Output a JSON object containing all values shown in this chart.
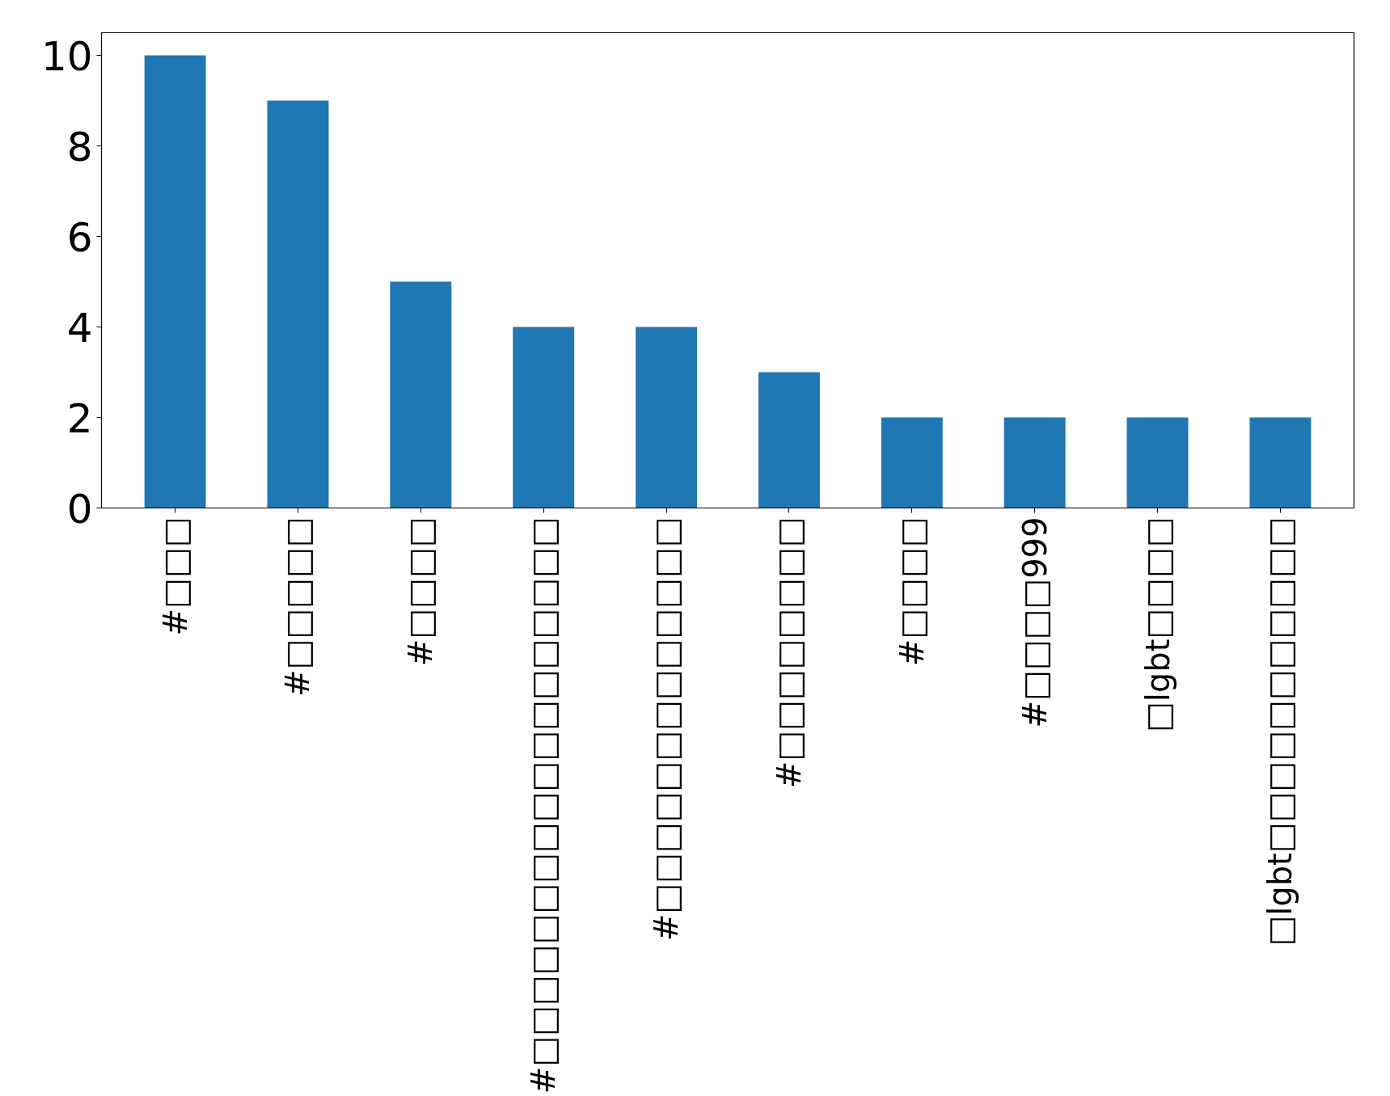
{
  "chart_data": {
    "type": "bar",
    "categories": [
      "#□□□",
      "#□□□□□",
      "#□□□□",
      "#□□□□□□□□□□□□□□□□□□",
      "#□□□□□□□□□□□□□",
      "#□□□□□□□□",
      "#□□□□",
      "#□□□□999",
      "□lgbt□□□□",
      "□lgbt□□□□□□□□□□□"
    ],
    "values": [
      10,
      9,
      5,
      4,
      4,
      3,
      2,
      2,
      2,
      2
    ],
    "color": "#1f77b4",
    "ylim": [
      0,
      10.5
    ],
    "yticks": [
      0,
      2,
      4,
      6,
      8,
      10
    ],
    "grid": false
  }
}
